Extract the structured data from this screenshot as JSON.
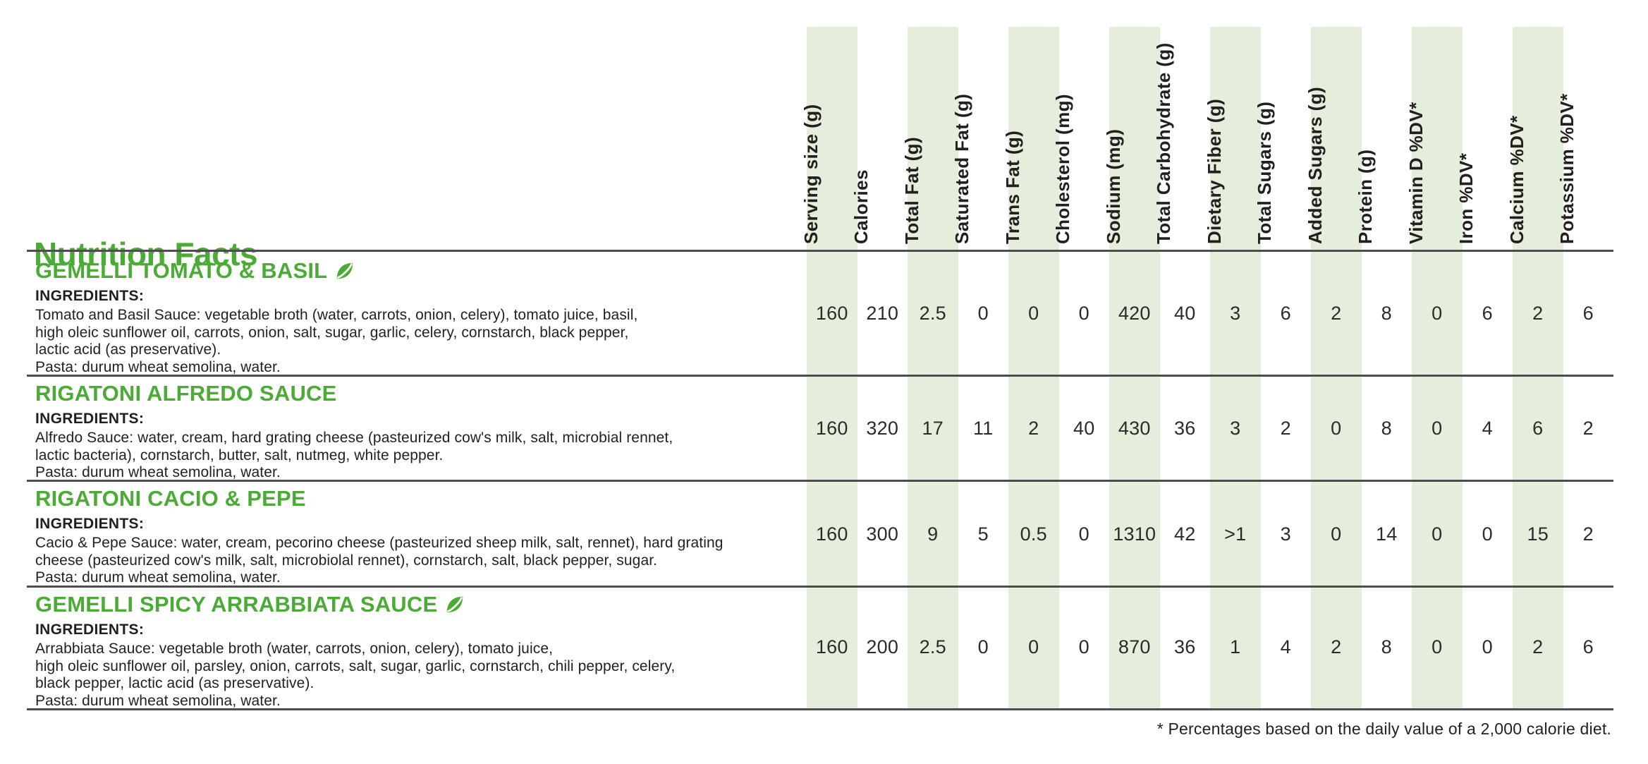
{
  "page": {
    "title": "Nutrition Facts",
    "footnote": "* Percentages based on the daily value of a 2,000 calorie diet."
  },
  "colors": {
    "green": "#4aac35",
    "stripe": "#e4eedb",
    "rule": "#4d4d4f",
    "text": "#231f20"
  },
  "columns": [
    "Serving size (g)",
    "Calories",
    "Total Fat (g)",
    "Saturated Fat (g)",
    "Trans Fat (g)",
    "Cholesterol (mg)",
    "Sodium (mg)",
    "Total Carbohydrate (g)",
    "Dietary Fiber (g)",
    "Total Sugars (g)",
    "Added Sugars (g)",
    "Protein (g)",
    "Vitamin D %DV*",
    "Iron %DV*",
    "Calcium %DV*",
    "Potassium %DV*"
  ],
  "products": [
    {
      "name": "GEMELLI TOMATO & BASIL",
      "leaf": true,
      "ingredients_label": "INGREDIENTS:",
      "ingredients": [
        "Tomato and Basil Sauce: vegetable broth (water, carrots, onion, celery), tomato juice, basil,",
        "high oleic sunflower oil, carrots, onion, salt, sugar, garlic, celery, cornstarch, black pepper,",
        "lactic acid (as preservative).",
        "Pasta: durum wheat semolina, water."
      ],
      "values": [
        "160",
        "210",
        "2.5",
        "0",
        "0",
        "0",
        "420",
        "40",
        "3",
        "6",
        "2",
        "8",
        "0",
        "6",
        "2",
        "6"
      ]
    },
    {
      "name": "RIGATONI ALFREDO SAUCE",
      "leaf": false,
      "ingredients_label": "INGREDIENTS:",
      "ingredients": [
        "Alfredo Sauce: water, cream, hard grating cheese (pasteurized cow's milk, salt, microbial rennet,",
        "lactic bacteria), cornstarch, butter, salt, nutmeg, white pepper.",
        "Pasta: durum wheat semolina, water."
      ],
      "values": [
        "160",
        "320",
        "17",
        "11",
        "2",
        "40",
        "430",
        "36",
        "3",
        "2",
        "0",
        "8",
        "0",
        "4",
        "6",
        "2"
      ]
    },
    {
      "name": "RIGATONI CACIO & PEPE",
      "leaf": false,
      "ingredients_label": "INGREDIENTS:",
      "ingredients": [
        "Cacio & Pepe Sauce: water, cream, pecorino cheese (pasteurized sheep milk, salt, rennet), hard grating",
        "cheese (pasteurized cow's milk, salt, microbiolal rennet), cornstarch, salt, black pepper, sugar.",
        "Pasta: durum wheat semolina, water."
      ],
      "values": [
        "160",
        "300",
        "9",
        "5",
        "0.5",
        "0",
        "1310",
        "42",
        ">1",
        "3",
        "0",
        "14",
        "0",
        "0",
        "15",
        "2"
      ]
    },
    {
      "name": "GEMELLI SPICY ARRABBIATA SAUCE",
      "leaf": true,
      "ingredients_label": "INGREDIENTS:",
      "ingredients": [
        "Arrabbiata Sauce: vegetable broth (water, carrots, onion, celery), tomato juice,",
        "high oleic sunflower oil, parsley, onion, carrots, salt, sugar, garlic, cornstarch, chili pepper, celery,",
        "black pepper, lactic acid (as preservative).",
        "Pasta: durum wheat semolina, water."
      ],
      "values": [
        "160",
        "200",
        "2.5",
        "0",
        "0",
        "0",
        "870",
        "36",
        "1",
        "4",
        "2",
        "8",
        "0",
        "0",
        "2",
        "6"
      ]
    }
  ]
}
